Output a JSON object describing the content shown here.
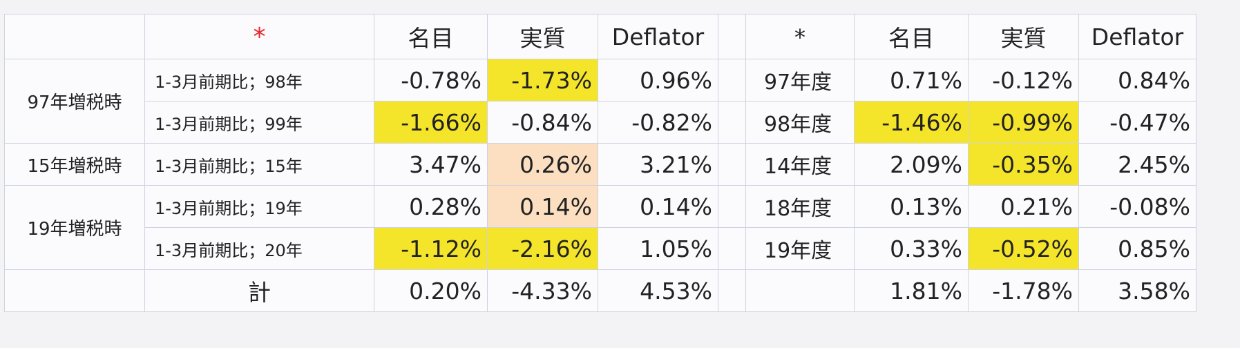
{
  "header": {
    "left_star": "*",
    "nominal": "名目",
    "real": "実質",
    "deflator": "Deflator",
    "right_star": "*",
    "nominal2": "名目",
    "real2": "実質",
    "deflator2": "Deflator"
  },
  "colors": {
    "highlight_yellow": "#f4e52b",
    "highlight_peach": "#fbdfc0",
    "star_red": "#e8262a"
  },
  "groups": {
    "g97": "97年増税時",
    "g15": "15年増税時",
    "g19": "19年増税時"
  },
  "rows": [
    {
      "label": "1-3月前期比；98年",
      "nominal": "-0.78%",
      "real": "-1.73%",
      "deflator": "0.96%",
      "fy": "97年度",
      "fy_nominal": "0.71%",
      "fy_real": "-0.12%",
      "fy_deflator": "0.84%"
    },
    {
      "label": "1-3月前期比；99年",
      "nominal": "-1.66%",
      "real": "-0.84%",
      "deflator": "-0.82%",
      "fy": "98年度",
      "fy_nominal": "-1.46%",
      "fy_real": "-0.99%",
      "fy_deflator": "-0.47%"
    },
    {
      "label": "1-3月前期比；15年",
      "nominal": "3.47%",
      "real": "0.26%",
      "deflator": "3.21%",
      "fy": "14年度",
      "fy_nominal": "2.09%",
      "fy_real": "-0.35%",
      "fy_deflator": "2.45%"
    },
    {
      "label": "1-3月前期比；19年",
      "nominal": "0.28%",
      "real": "0.14%",
      "deflator": "0.14%",
      "fy": "18年度",
      "fy_nominal": "0.13%",
      "fy_real": "0.21%",
      "fy_deflator": "-0.08%"
    },
    {
      "label": "1-3月前期比；20年",
      "nominal": "-1.12%",
      "real": "-2.16%",
      "deflator": "1.05%",
      "fy": "19年度",
      "fy_nominal": "0.33%",
      "fy_real": "-0.52%",
      "fy_deflator": "0.85%"
    }
  ],
  "total": {
    "label": "計",
    "nominal": "0.20%",
    "real": "-4.33%",
    "deflator": "4.53%",
    "fy_nominal": "1.81%",
    "fy_real": "-1.78%",
    "fy_deflator": "3.58%"
  }
}
